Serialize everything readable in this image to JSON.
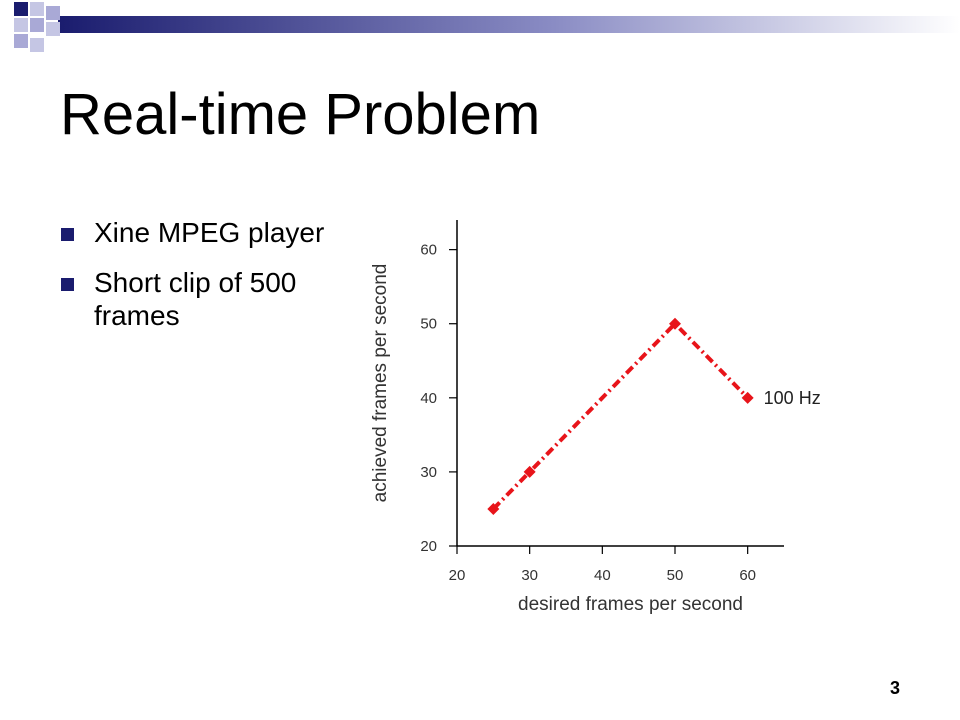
{
  "slide": {
    "title": "Real-time Problem",
    "bullets": [
      "Xine MPEG player",
      "Short clip of 500 frames"
    ],
    "page_number": "3"
  },
  "colors": {
    "accent_dark": "#1a1c6e",
    "accent_light": "#a9a9d6",
    "series": "#e8141a"
  },
  "chart_data": {
    "type": "line",
    "title": "",
    "xlabel": "desired frames per second",
    "ylabel": "achieved frames per second",
    "xlim": [
      20,
      65
    ],
    "ylim": [
      20,
      64
    ],
    "xticks": [
      20,
      30,
      40,
      50,
      60
    ],
    "yticks": [
      20,
      30,
      40,
      50,
      60
    ],
    "grid": false,
    "series": [
      {
        "name": "100 Hz",
        "x": [
          25,
          30,
          50,
          60
        ],
        "y": [
          25,
          30,
          50,
          40
        ]
      }
    ]
  }
}
